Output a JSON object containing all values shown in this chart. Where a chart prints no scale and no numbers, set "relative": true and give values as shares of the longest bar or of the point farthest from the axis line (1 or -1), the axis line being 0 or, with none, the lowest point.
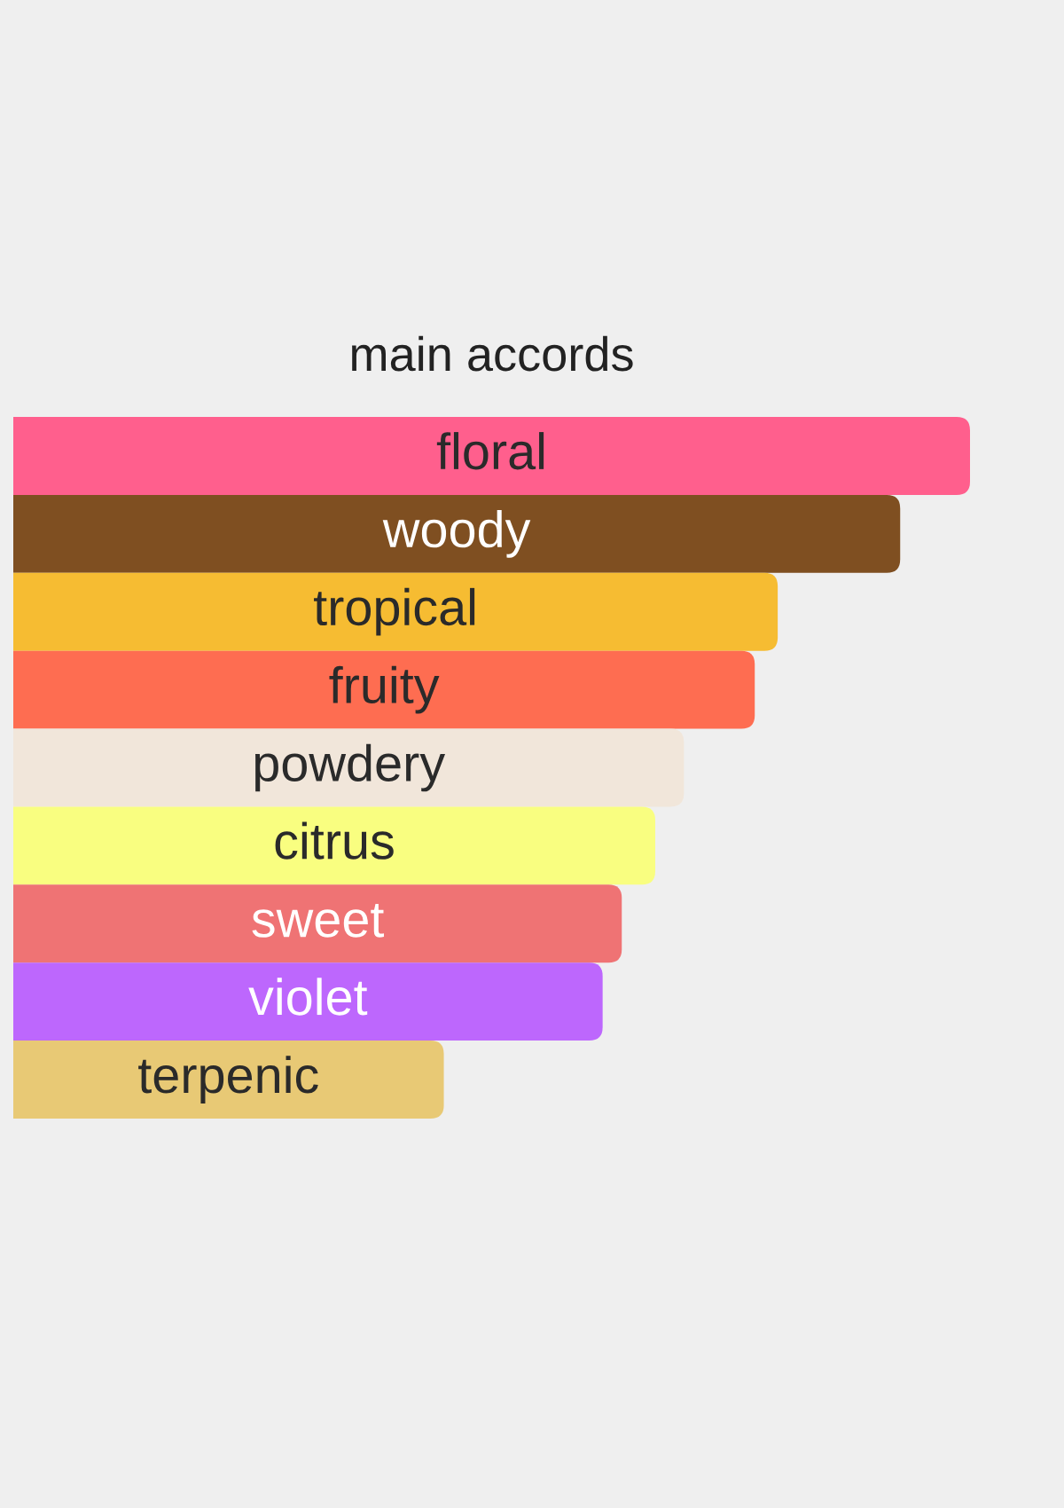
{
  "chart_data": {
    "type": "bar",
    "title": "main accords",
    "orientation": "horizontal",
    "relative": true,
    "categories": [
      "floral",
      "woody",
      "tropical",
      "fruity",
      "powdery",
      "citrus",
      "sweet",
      "violet",
      "terpenic"
    ],
    "values": [
      1,
      0.927,
      0.799,
      0.775,
      0.701,
      0.671,
      0.636,
      0.616,
      0.45
    ],
    "colors": [
      "#ff5f8d",
      "#7f4f21",
      "#f6bc32",
      "#fe6d51",
      "#f1e6da",
      "#f9fe80",
      "#ef7374",
      "#bd67fd",
      "#e8c975"
    ]
  }
}
